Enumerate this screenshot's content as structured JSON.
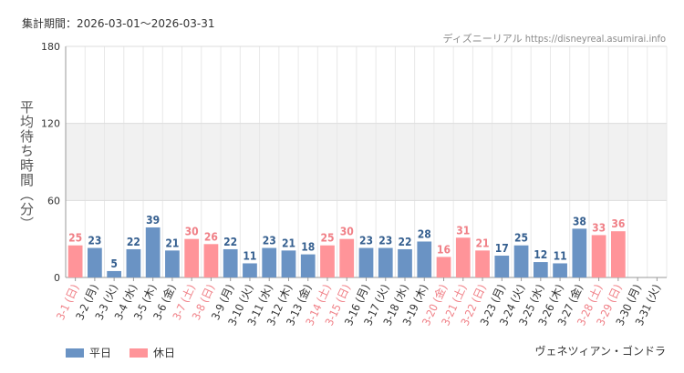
{
  "header": {
    "period": "集計期間：2026-03-01〜2026-03-31",
    "source": "ディズニーリアル https://disneyreal.asumirai.info"
  },
  "legend": {
    "weekday": "平日",
    "holiday": "休日"
  },
  "footer": {
    "attraction": "ヴェネツィアン・ゴンドラ"
  },
  "colors": {
    "weekday": "#6a93c4",
    "holiday": "#ff9499",
    "holiday_text": "#f07f86",
    "weekday_text": "#355f8f",
    "band": "#f1f1f1"
  },
  "chart_data": {
    "type": "bar",
    "ylabel": "平均待ち時間（分）",
    "ylim": [
      0,
      180
    ],
    "yticks": [
      0,
      60,
      120,
      180
    ],
    "shaded_band": [
      60,
      120
    ],
    "categories": [
      "3-1 (日)",
      "3-2 (月)",
      "3-3 (火)",
      "3-4 (水)",
      "3-5 (木)",
      "3-6 (金)",
      "3-7 (土)",
      "3-8 (日)",
      "3-9 (月)",
      "3-10 (火)",
      "3-11 (水)",
      "3-12 (木)",
      "3-13 (金)",
      "3-14 (土)",
      "3-15 (日)",
      "3-16 (月)",
      "3-17 (火)",
      "3-18 (水)",
      "3-19 (木)",
      "3-20 (金)",
      "3-21 (土)",
      "3-22 (日)",
      "3-23 (月)",
      "3-24 (火)",
      "3-25 (水)",
      "3-26 (木)",
      "3-27 (金)",
      "3-28 (土)",
      "3-29 (日)",
      "3-30 (月)",
      "3-31 (火)"
    ],
    "values": [
      25,
      23,
      5,
      22,
      39,
      21,
      30,
      26,
      22,
      11,
      23,
      21,
      18,
      25,
      30,
      23,
      23,
      22,
      28,
      16,
      31,
      21,
      17,
      25,
      12,
      11,
      38,
      33,
      36,
      null,
      null
    ],
    "holiday": [
      true,
      false,
      false,
      false,
      false,
      false,
      true,
      true,
      false,
      false,
      false,
      false,
      false,
      true,
      true,
      false,
      false,
      false,
      false,
      true,
      true,
      true,
      false,
      false,
      false,
      false,
      false,
      true,
      true,
      false,
      false
    ],
    "series": [
      {
        "name": "平日"
      },
      {
        "name": "休日"
      }
    ]
  }
}
